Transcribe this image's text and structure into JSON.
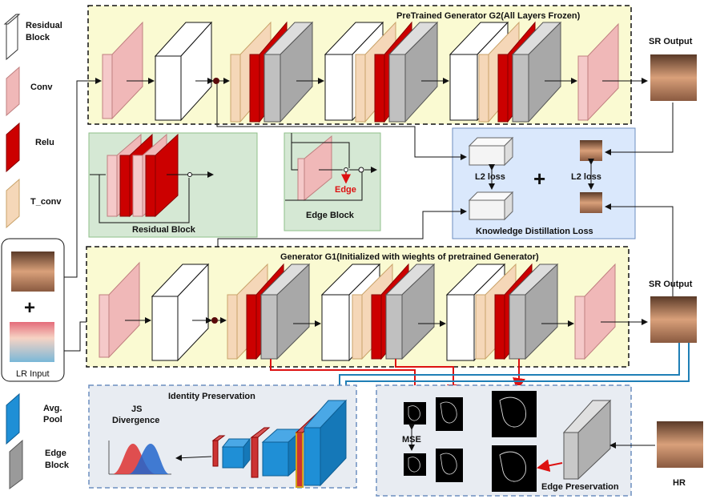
{
  "legend": {
    "residual": "Residual Block",
    "residual_l1": "Residual",
    "residual_l2": "Block",
    "conv": "Conv",
    "relu": "Relu",
    "tconv": "T_conv",
    "avgpool_l1": "Avg.",
    "avgpool_l2": "Pool",
    "edge_l1": "Edge",
    "edge_l2": "Block"
  },
  "g2": {
    "title": "PreTrained Generator G2(All Layers Frozen)"
  },
  "g1": {
    "title": "Generator G1(Initialized with wieghts of pretrained Generator)"
  },
  "insets": {
    "residual_block": "Residual Block",
    "edge_block": "Edge Block",
    "edge_label": "Edge"
  },
  "kd": {
    "title": "Knowledge Distillation Loss",
    "l2_left": "L2 loss",
    "l2_right": "L2 loss",
    "plus": "+"
  },
  "io": {
    "sr_output_top": "SR Output",
    "sr_output_bottom": "SR Output",
    "lr_input": "LR Input",
    "plus": "+",
    "hr": "HR"
  },
  "identity": {
    "title": "Identity Preservation",
    "js_l1": "JS",
    "js_l2": "Divergence"
  },
  "edge_pres": {
    "title": "Edge Preservation",
    "mse": "MSE"
  },
  "colors": {
    "yellow_bg": "#fafad2",
    "green_bg": "#d5e8d4",
    "blue_bg": "#dae8fc",
    "gray_bg": "#e8ecf2",
    "conv": "#f0b8b8",
    "relu": "#cc0000",
    "tconv": "#f5d7b8",
    "pool": "#1f8fd6",
    "edge": "#b0b0b0"
  }
}
